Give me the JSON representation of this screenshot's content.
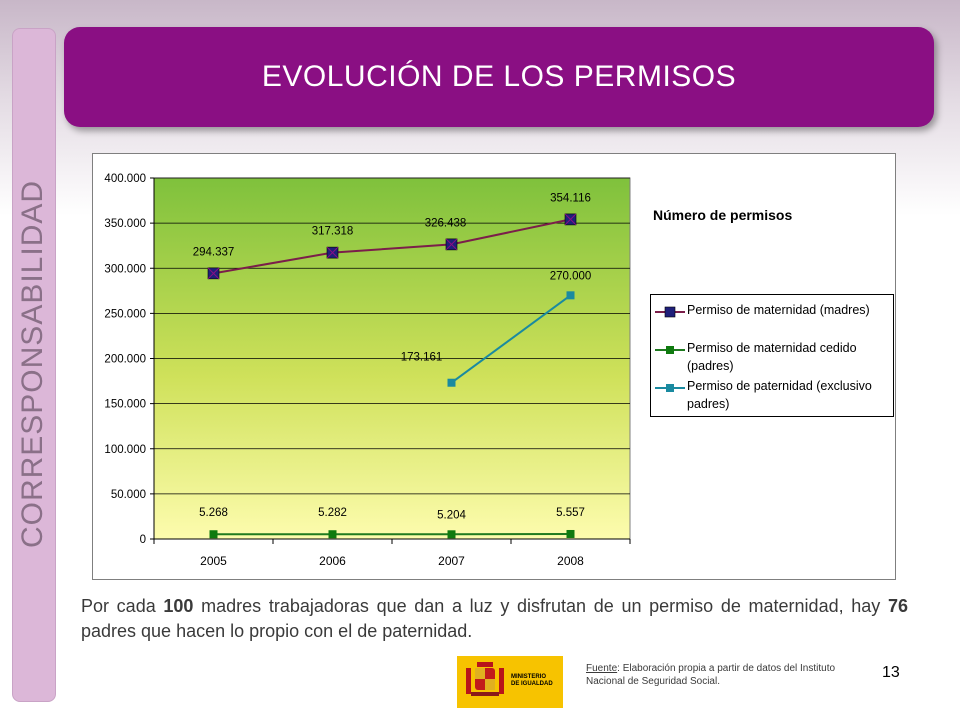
{
  "slide": {
    "title": "EVOLUCIÓN DE LOS PERMISOS",
    "side_label": "CORRESPONSABILIDAD",
    "accent_color": "#8a0f83",
    "side_color": "#dcb7d8",
    "page_number": "13"
  },
  "caption": {
    "part1": "Por cada ",
    "num1": "100",
    "part2": " madres trabajadoras que dan a luz y disfrutan de un permiso de maternidad, hay ",
    "num2": "76",
    "part3": " padres que hacen lo propio con el de paternidad."
  },
  "source": {
    "label": "Fuente",
    "text": ": Elaboración propia a partir de datos del Instituto Nacional de Seguridad Social."
  },
  "logo": {
    "text_line1": "MINISTERIO",
    "text_line2": "DE IGUALDAD"
  },
  "chart_data": {
    "type": "line",
    "title": "Número de permisos",
    "categories": [
      "2005",
      "2006",
      "2007",
      "2008"
    ],
    "ylim": [
      0,
      400000
    ],
    "yticks": [
      0,
      50000,
      100000,
      150000,
      200000,
      250000,
      300000,
      350000,
      400000
    ],
    "ytick_labels": [
      "0",
      "50.000",
      "100.000",
      "150.000",
      "200.000",
      "250.000",
      "300.000",
      "350.000",
      "400.000"
    ],
    "grid": true,
    "legend_position": "right",
    "series": [
      {
        "name": "Permiso de maternidad (madres)",
        "color": "#7b1e4a",
        "marker_color": "#1f1f7a",
        "values": [
          294337,
          317318,
          326438,
          354116
        ],
        "labels": [
          "294.337",
          "317.318",
          "326.438",
          "354.116"
        ]
      },
      {
        "name": "Permiso de maternidad cedido (padres)",
        "color": "#1f7a1f",
        "marker_color": "#0f7a0f",
        "values": [
          5268,
          5282,
          5204,
          5557
        ],
        "labels": [
          "5.268",
          "5.282",
          "5.204",
          "5.557"
        ]
      },
      {
        "name": "Permiso de paternidad (exclusivo padres)",
        "color": "#1a8aa0",
        "marker_color": "#1a8aa0",
        "values": [
          null,
          null,
          173161,
          270000
        ],
        "labels": [
          "",
          "",
          "173.161",
          "270.000"
        ]
      }
    ]
  }
}
